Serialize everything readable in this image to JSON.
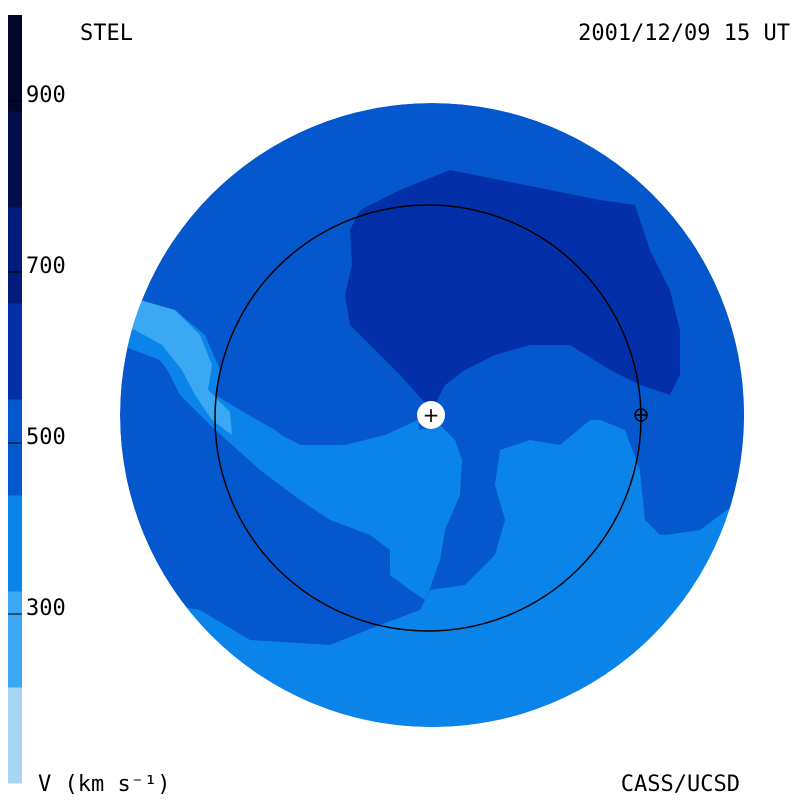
{
  "header": {
    "source_label": "STEL",
    "timestamp": "2001/12/09 15 UT"
  },
  "footer": {
    "units_label": "V (km s⁻¹)",
    "credit": "CASS/UCSD"
  },
  "colorbar": {
    "ticks": [
      "900",
      "700",
      "500",
      "300"
    ],
    "bands": [
      "#a7d5f5",
      "#3aa8f2",
      "#0b84ea",
      "#0457cc",
      "#0330a8",
      "#021c7a",
      "#020f4a",
      "#01062a"
    ]
  },
  "map": {
    "palette": {
      "outer": "#0457cc",
      "fast": "#0330a8",
      "slow": "#0b84ea",
      "slowest": "#3aa8f2"
    },
    "markers": {
      "sun": "+",
      "earth_orbit": "1 AU"
    }
  }
}
